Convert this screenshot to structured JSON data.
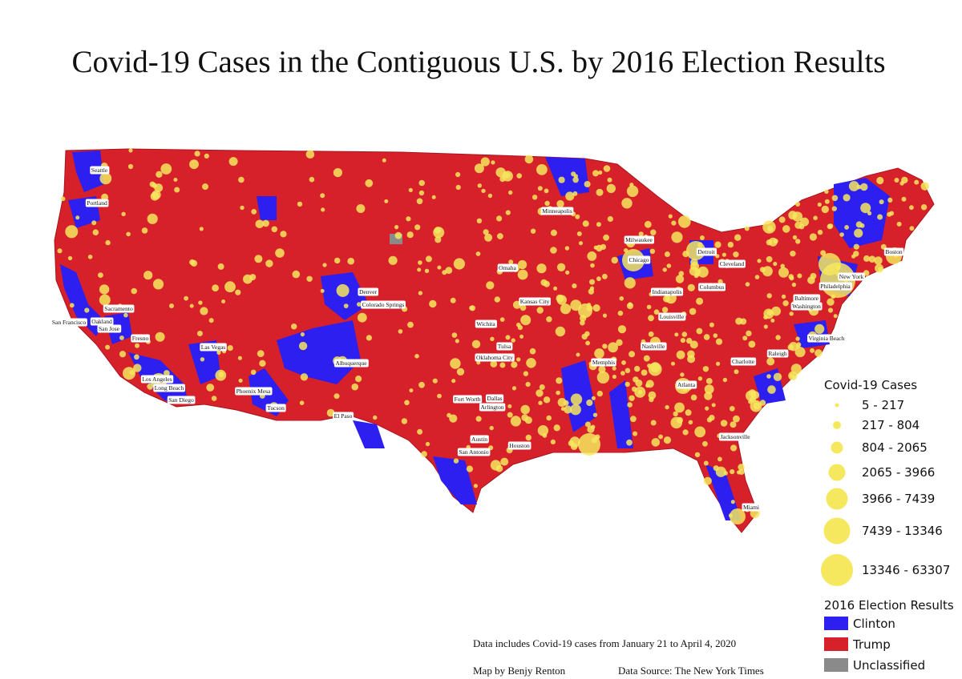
{
  "title": "Covid-19 Cases in the Contiguous U.S. by 2016 Election Results",
  "cities": [
    "Seattle",
    "Portland",
    "Sacramento",
    "San Francisco",
    "Oakland",
    "San Jose",
    "Fresno",
    "Los Angeles",
    "Long Beach",
    "San Diego",
    "Las Vegas",
    "Phoenix Mesa",
    "Tucson",
    "Albuquerque",
    "El Paso",
    "Denver",
    "Colorado Springs",
    "Minneapolis",
    "Omaha",
    "Kansas City",
    "Wichita",
    "Tulsa",
    "Oklahoma City",
    "Fort Worth",
    "Dallas",
    "Arlington",
    "Austin",
    "San Antonio",
    "Houston",
    "Memphis",
    "Milwaukee",
    "Chicago",
    "Detroit",
    "Cleveland",
    "Indianapolis",
    "Columbus",
    "Louisville",
    "Nashville",
    "Atlanta",
    "Charlotte",
    "Raleigh",
    "Virginia Beach",
    "Baltimore",
    "Washington",
    "Philadelphia",
    "New York",
    "Boston",
    "Jacksonville",
    "Miami"
  ],
  "legend": {
    "cases_title": "Covid-19 Cases",
    "cases": [
      "5 - 217",
      "217 - 804",
      "804 - 2065",
      "2065 - 3966",
      "3966 - 7439",
      "7439 - 13346",
      "13346 - 63307"
    ],
    "cases_color": "#f6e85e",
    "election_title": "2016 Election Results",
    "election": [
      {
        "label": "Clinton",
        "color": "#2c1ff0"
      },
      {
        "label": "Trump",
        "color": "#d6212b"
      },
      {
        "label": "Unclassified",
        "color": "#8a8a8a"
      }
    ]
  },
  "notes": {
    "range": "Data includes Covid-19 cases from January 21 to April 4, 2020",
    "author": "Map by Benjy Renton",
    "source": "Data Source: The New York Times"
  }
}
